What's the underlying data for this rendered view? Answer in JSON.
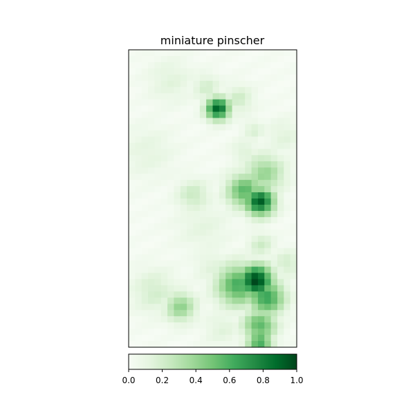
{
  "chart_data": {
    "type": "heatmap",
    "title": "miniature pinscher",
    "colormap": "Greens",
    "colorbar": {
      "orientation": "horizontal",
      "range": [
        0,
        1
      ],
      "ticks": [
        {
          "value": 0.0,
          "label": "0.0"
        },
        {
          "value": 0.2,
          "label": "0.2"
        },
        {
          "value": 0.4,
          "label": "0.4"
        },
        {
          "value": 0.6,
          "label": "0.6"
        },
        {
          "value": 0.8,
          "label": "0.8"
        },
        {
          "value": 1.0,
          "label": "1.0"
        }
      ]
    },
    "axes": {
      "x_ticks": "none",
      "y_ticks": "none"
    },
    "grid_shape": [
      48,
      26
    ],
    "hotspots": [
      {
        "col": 13.3,
        "row": 9.0,
        "peak": 0.88,
        "spread": 1.3
      },
      {
        "col": 19.8,
        "row": 24.0,
        "peak": 0.9,
        "spread": 1.6
      },
      {
        "col": 17.5,
        "row": 22.3,
        "peak": 0.55,
        "spread": 2.0
      },
      {
        "col": 20.5,
        "row": 19.5,
        "peak": 0.38,
        "spread": 2.2
      },
      {
        "col": 19.2,
        "row": 36.8,
        "peak": 1.0,
        "spread": 1.8
      },
      {
        "col": 16.5,
        "row": 37.5,
        "peak": 0.6,
        "spread": 2.4
      },
      {
        "col": 20.8,
        "row": 39.5,
        "peak": 0.65,
        "spread": 2.0
      },
      {
        "col": 19.8,
        "row": 44.0,
        "peak": 0.55,
        "spread": 1.8
      },
      {
        "col": 19.8,
        "row": 46.8,
        "peak": 0.6,
        "spread": 1.4
      },
      {
        "col": 7.5,
        "row": 41.0,
        "peak": 0.4,
        "spread": 1.7
      },
      {
        "col": 3.5,
        "row": 38.5,
        "peak": 0.18,
        "spread": 2.5
      },
      {
        "col": 9.5,
        "row": 23.0,
        "peak": 0.22,
        "spread": 1.8
      },
      {
        "col": 6.0,
        "row": 4.5,
        "peak": 0.12,
        "spread": 2.5
      },
      {
        "col": 11.5,
        "row": 5.5,
        "peak": 0.18,
        "spread": 1.5
      },
      {
        "col": 16.5,
        "row": 7.5,
        "peak": 0.2,
        "spread": 1.6
      },
      {
        "col": 18.8,
        "row": 12.5,
        "peak": 0.15,
        "spread": 1.2
      },
      {
        "col": 17.5,
        "row": 16.0,
        "peak": 0.14,
        "spread": 1.5
      },
      {
        "col": 23.5,
        "row": 13.5,
        "peak": 0.12,
        "spread": 2.0
      },
      {
        "col": 2.5,
        "row": 16.0,
        "peak": 0.1,
        "spread": 3.0
      },
      {
        "col": 11.0,
        "row": 28.0,
        "peak": 0.1,
        "spread": 3.0
      },
      {
        "col": 20.0,
        "row": 31.0,
        "peak": 0.2,
        "spread": 1.4
      },
      {
        "col": 12.5,
        "row": 34.5,
        "peak": 0.12,
        "spread": 2.0
      },
      {
        "col": 24.0,
        "row": 34.0,
        "peak": 0.18,
        "spread": 1.6
      },
      {
        "col": 14.0,
        "row": 44.5,
        "peak": 0.12,
        "spread": 2.0
      }
    ]
  }
}
